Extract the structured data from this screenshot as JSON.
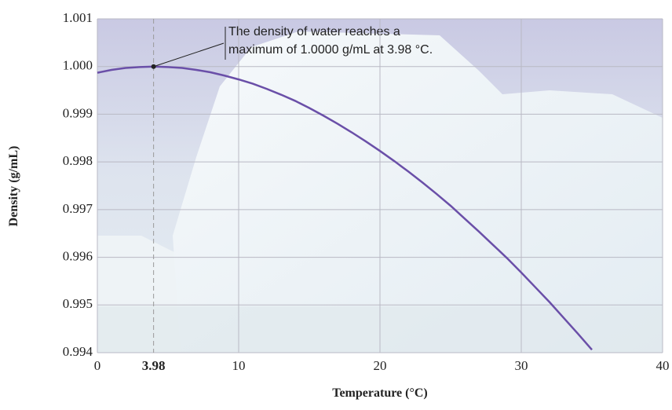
{
  "chart_data": {
    "type": "line",
    "x_label": "Temperature (°C)",
    "y_label": "Density (g/mL)",
    "x": [
      0,
      1,
      2,
      3,
      4,
      5,
      6,
      7,
      8,
      9,
      10,
      11,
      12,
      13,
      14,
      15,
      16,
      17,
      18,
      19,
      20,
      21,
      22,
      23,
      24,
      25,
      26,
      27,
      28,
      29,
      30,
      31,
      32,
      33,
      34,
      35
    ],
    "series": [
      {
        "color": "#6a4fa8",
        "values": [
          0.99987,
          0.99993,
          0.99997,
          0.99999,
          1.0,
          0.99999,
          0.99997,
          0.99993,
          0.99988,
          0.99981,
          0.99973,
          0.99964,
          0.99953,
          0.99941,
          0.99928,
          0.99913,
          0.99897,
          0.9988,
          0.99862,
          0.99843,
          0.99823,
          0.99802,
          0.9978,
          0.99757,
          0.99733,
          0.99708,
          0.99681,
          0.99654,
          0.99626,
          0.99598,
          0.99568,
          0.99537,
          0.99506,
          0.99473,
          0.9944,
          0.99406
        ]
      }
    ],
    "xlim": [
      0,
      40
    ],
    "xticks": [
      0,
      3.98,
      10,
      20,
      30,
      40
    ],
    "ylim": [
      0.994,
      1.001
    ],
    "yticks": [
      0.994,
      0.995,
      0.996,
      0.997,
      0.998,
      0.999,
      {
        "value": 1.0,
        "label": "1.000"
      },
      1.001
    ],
    "grid": true,
    "annotation": {
      "x": 3.98,
      "y": 1.0,
      "lines": [
        "The density of water reaches a",
        "maximum of 1.0000 g/mL at 3.98 °C."
      ]
    }
  }
}
